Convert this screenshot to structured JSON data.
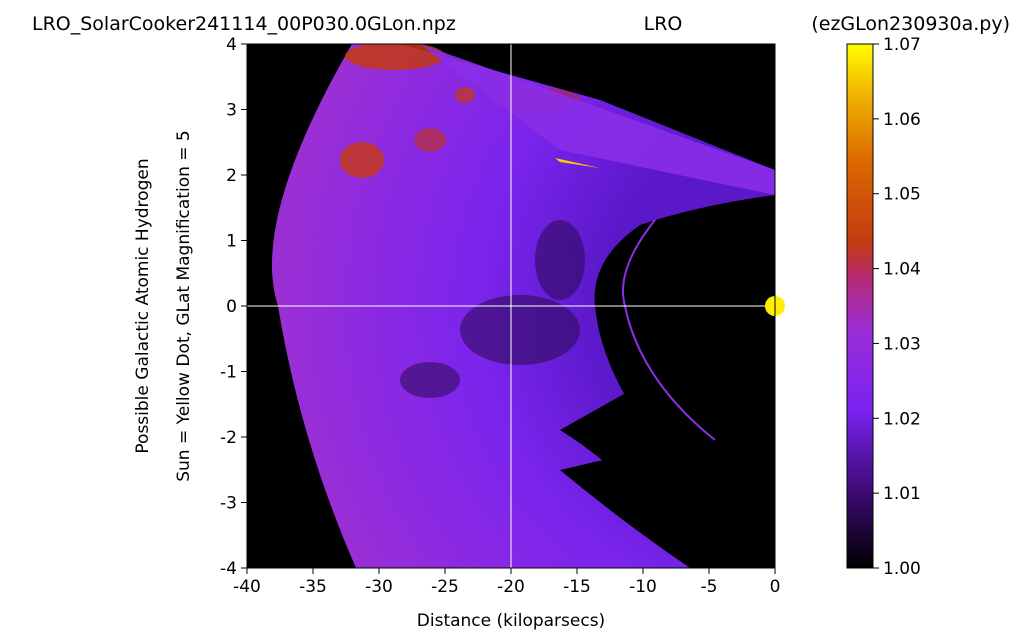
{
  "header": {
    "left": "LRO_SolarCooker241114_00P030.0GLon.npz",
    "center": "LRO",
    "right": "(ezGLon230930a.py)"
  },
  "chart_data": {
    "type": "heatmap",
    "xlabel": "Distance (kiloparsecs)",
    "ylabel_line1": "Possible Galactic Atomic Hydrogen",
    "ylabel_line2": "Sun = Yellow Dot, GLat Magnification = 5",
    "xlim": [
      -40,
      0
    ],
    "ylim": [
      -4,
      4
    ],
    "x_ticks": [
      -40,
      -35,
      -30,
      -25,
      -20,
      -15,
      -10,
      -5,
      0
    ],
    "x_tick_labels": [
      "-40",
      "-35",
      "-30",
      "-25",
      "-20",
      "-15",
      "-10",
      "-5",
      "0"
    ],
    "y_ticks": [
      4,
      3,
      2,
      1,
      0,
      -1,
      -2,
      -3,
      -4
    ],
    "y_tick_labels": [
      "4",
      "3",
      "2",
      "1",
      "0",
      "-1",
      "-2",
      "-3",
      "-4"
    ],
    "crosshair": {
      "x": -20,
      "y": 0
    },
    "sun": {
      "x": 0,
      "y": 0,
      "color": "#ffee00"
    },
    "colorbar": {
      "colormap": "gnuplot",
      "range": [
        1.0,
        1.07
      ],
      "ticks": [
        1.07,
        1.06,
        1.05,
        1.04,
        1.03,
        1.02,
        1.01,
        1.0
      ],
      "tick_labels": [
        "1.07",
        "1.06",
        "1.05",
        "1.04",
        "1.03",
        "1.02",
        "1.01",
        "1.00"
      ]
    },
    "colors": {
      "background": "#000000",
      "violet": "#7a22f0",
      "purple": "#9a2dd8",
      "orange": "#c83a10",
      "yellow": "#ffee00"
    }
  }
}
